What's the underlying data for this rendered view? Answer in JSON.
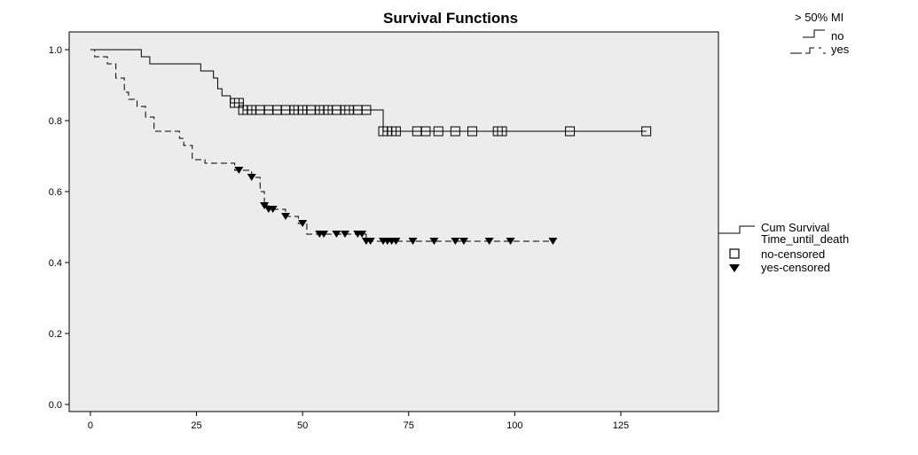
{
  "chart_data": {
    "type": "line",
    "title": "Survival Functions",
    "xlabel": "",
    "ylabel": "",
    "xlim": [
      -5,
      148
    ],
    "ylim": [
      -0.02,
      1.05
    ],
    "x_ticks": [
      0,
      25,
      50,
      75,
      100,
      125
    ],
    "y_ticks": [
      0.0,
      0.2,
      0.4,
      0.6,
      0.8,
      1.0
    ],
    "y_tick_labels": [
      "0.0",
      "0.2",
      "0.4",
      "0.6",
      "0.8",
      "1.0"
    ],
    "grid": false,
    "plot_background": "#ececec",
    "legend_top": {
      "title": "> 50% MI",
      "entries": [
        "no",
        "yes"
      ]
    },
    "legend_right": {
      "entries": [
        "Cum Survival",
        "Time_until_death",
        "no-censored",
        "yes-censored"
      ]
    },
    "series": [
      {
        "name": "no",
        "line_style": "solid",
        "color": "#000000",
        "steps": [
          [
            0,
            1.0
          ],
          [
            12,
            0.98
          ],
          [
            14,
            0.96
          ],
          [
            26,
            0.94
          ],
          [
            29,
            0.92
          ],
          [
            30,
            0.89
          ],
          [
            31,
            0.87
          ],
          [
            33,
            0.85
          ],
          [
            36,
            0.83
          ],
          [
            69,
            0.77
          ],
          [
            131,
            0.77
          ]
        ],
        "censored_marker": "square",
        "censored": [
          34,
          35,
          36,
          37,
          38,
          40,
          42,
          44,
          46,
          48,
          49,
          50,
          52,
          54,
          55,
          56,
          58,
          60,
          61,
          63,
          65,
          69,
          70,
          71,
          72,
          77,
          79,
          82,
          86,
          90,
          96,
          97,
          113,
          131
        ]
      },
      {
        "name": "yes",
        "line_style": "dashed",
        "color": "#000000",
        "steps": [
          [
            0,
            1.0
          ],
          [
            1,
            0.98
          ],
          [
            4,
            0.96
          ],
          [
            6,
            0.92
          ],
          [
            8,
            0.88
          ],
          [
            9,
            0.86
          ],
          [
            11,
            0.84
          ],
          [
            13,
            0.81
          ],
          [
            15,
            0.77
          ],
          [
            21,
            0.75
          ],
          [
            22,
            0.73
          ],
          [
            24,
            0.69
          ],
          [
            27,
            0.68
          ],
          [
            34,
            0.66
          ],
          [
            38,
            0.64
          ],
          [
            40,
            0.6
          ],
          [
            41,
            0.56
          ],
          [
            42,
            0.55
          ],
          [
            46,
            0.53
          ],
          [
            49,
            0.51
          ],
          [
            51,
            0.48
          ],
          [
            65,
            0.46
          ],
          [
            109,
            0.46
          ]
        ],
        "censored_marker": "triangle-down",
        "censored": [
          35,
          38,
          41,
          42,
          43,
          46,
          50,
          54,
          55,
          58,
          60,
          63,
          64,
          65,
          66,
          69,
          70,
          71,
          72,
          76,
          81,
          86,
          88,
          94,
          99,
          109
        ]
      }
    ]
  }
}
